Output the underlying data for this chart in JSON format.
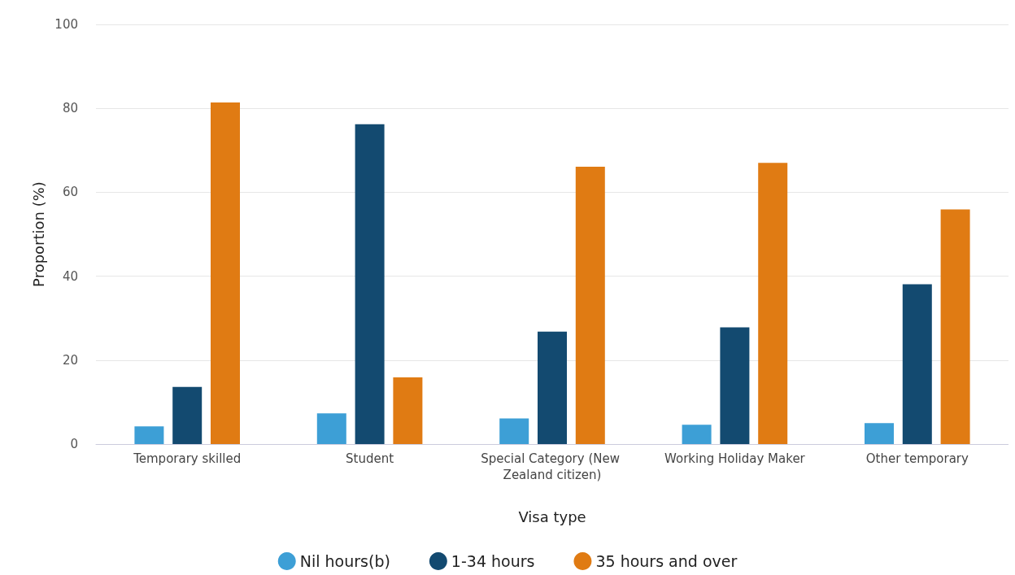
{
  "chart_data": {
    "type": "bar",
    "xlabel": "Visa type",
    "ylabel": "Proportion (%)",
    "categories": [
      "Temporary skilled",
      "Student",
      "Special Category (New Zealand citizen)",
      "Working Holiday Maker",
      "Other temporary"
    ],
    "series": [
      {
        "name": "Nil hours(b)",
        "color": "#3d9fd6",
        "values": [
          4.2,
          7.3,
          6.1,
          4.6,
          5.0
        ]
      },
      {
        "name": "1-34 hours",
        "color": "#134a70",
        "values": [
          13.6,
          76.2,
          26.8,
          27.8,
          38.1
        ]
      },
      {
        "name": "35 hours and over",
        "color": "#e07b13",
        "values": [
          81.4,
          15.9,
          66.1,
          67.0,
          55.9
        ]
      }
    ],
    "ylim": [
      0,
      100
    ],
    "yticks": [
      0,
      20,
      40,
      60,
      80,
      100
    ],
    "grid": "y",
    "legend": "bottom"
  }
}
